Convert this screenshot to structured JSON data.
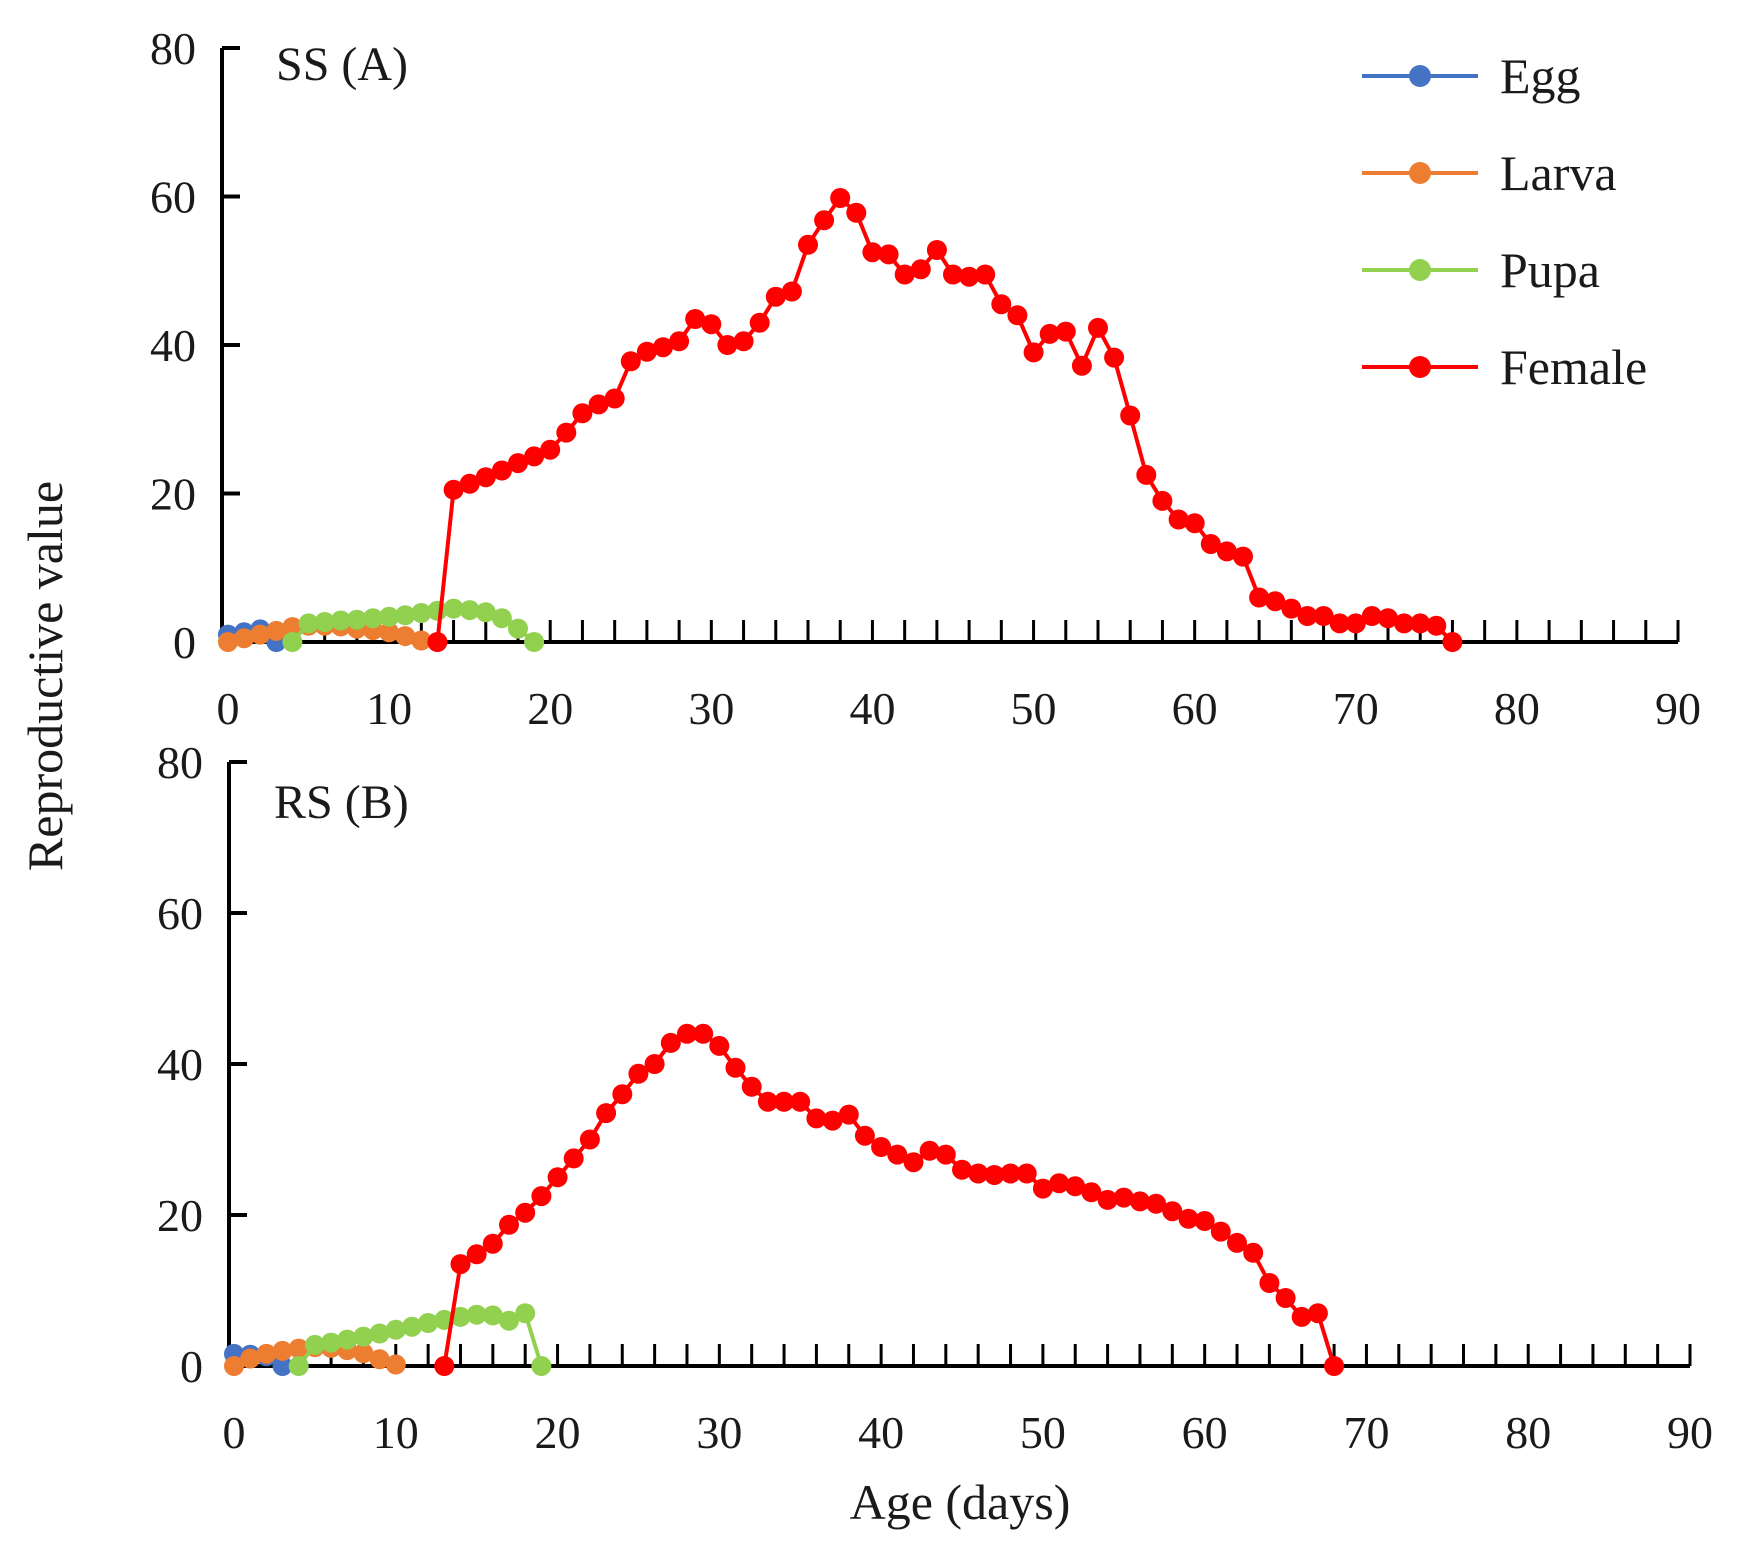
{
  "chart_data": {
    "type": "line",
    "ylabel": "Reproductive value",
    "xlabel": "Age (days)",
    "xlim": [
      0,
      90
    ],
    "ylim": [
      0,
      80
    ],
    "x_ticks": [
      "0",
      "10",
      "20",
      "30",
      "40",
      "50",
      "60",
      "70",
      "80",
      "90"
    ],
    "y_ticks": [
      "0",
      "20",
      "40",
      "60",
      "80"
    ],
    "legend": [
      {
        "name": "Egg",
        "color": "#4472c4"
      },
      {
        "name": "Larva",
        "color": "#ed7d31"
      },
      {
        "name": "Pupa",
        "color": "#92d050"
      },
      {
        "name": "Female",
        "color": "#ff0000"
      }
    ],
    "panels": [
      {
        "label": "SS (A)",
        "series": [
          {
            "name": "Egg",
            "x": [
              0,
              1,
              2,
              3
            ],
            "y": [
              1.0,
              1.3,
              1.7,
              0.0
            ]
          },
          {
            "name": "Larva",
            "x": [
              0,
              1,
              2,
              3,
              4,
              5,
              6,
              7,
              8,
              9,
              10,
              11,
              12
            ],
            "y": [
              0.0,
              0.5,
              1.0,
              1.5,
              2.0,
              2.2,
              2.2,
              2.1,
              1.8,
              1.6,
              1.3,
              0.8,
              0.2
            ]
          },
          {
            "name": "Pupa",
            "x": [
              4,
              5,
              6,
              7,
              8,
              9,
              10,
              11,
              12,
              13,
              14,
              15,
              16,
              17,
              18,
              19
            ],
            "y": [
              0.0,
              2.5,
              2.7,
              2.9,
              3.0,
              3.2,
              3.4,
              3.6,
              3.9,
              4.2,
              4.5,
              4.3,
              4.0,
              3.2,
              1.8,
              0.0
            ]
          },
          {
            "name": "Female",
            "x": [
              13,
              14,
              15,
              16,
              17,
              18,
              19,
              20,
              21,
              22,
              23,
              24,
              25,
              26,
              27,
              28,
              29,
              30,
              31,
              32,
              33,
              34,
              35,
              36,
              37,
              38,
              39,
              40,
              41,
              42,
              43,
              44,
              45,
              46,
              47,
              48,
              49,
              50,
              51,
              52,
              53,
              54,
              55,
              56,
              57,
              58,
              59,
              60,
              61,
              62,
              63,
              64,
              65,
              66,
              67,
              68,
              69,
              70,
              71,
              72,
              73,
              74,
              75,
              76
            ],
            "y": [
              0.0,
              20.5,
              21.3,
              22.2,
              23.1,
              24.1,
              25.0,
              25.9,
              28.2,
              30.8,
              32.0,
              32.8,
              37.8,
              39.1,
              39.7,
              40.5,
              43.5,
              42.8,
              40.0,
              40.5,
              43.0,
              46.5,
              47.2,
              53.5,
              56.8,
              59.8,
              57.8,
              52.5,
              52.2,
              49.5,
              50.2,
              52.8,
              49.5,
              49.2,
              49.5,
              45.5,
              44.0,
              39.0,
              41.5,
              41.8,
              37.2,
              42.3,
              38.3,
              30.5,
              22.5,
              19.0,
              16.5,
              16.0,
              13.2,
              12.2,
              11.5,
              6.0,
              5.5,
              4.5,
              3.5,
              3.5,
              2.5,
              2.5,
              3.5,
              3.2,
              2.5,
              2.5,
              2.2,
              0.0
            ]
          }
        ]
      },
      {
        "label": "RS (B)",
        "series": [
          {
            "name": "Egg",
            "x": [
              0,
              1,
              2,
              3
            ],
            "y": [
              1.6,
              1.5,
              1.3,
              0.0
            ]
          },
          {
            "name": "Larva",
            "x": [
              0,
              1,
              2,
              3,
              4,
              5,
              6,
              7,
              8,
              9,
              10
            ],
            "y": [
              0.0,
              1.0,
              1.6,
              2.0,
              2.3,
              2.5,
              2.4,
              2.1,
              1.7,
              0.9,
              0.2
            ]
          },
          {
            "name": "Pupa",
            "x": [
              4,
              5,
              6,
              7,
              8,
              9,
              10,
              11,
              12,
              13,
              14,
              15,
              16,
              17,
              18,
              19
            ],
            "y": [
              0.0,
              2.8,
              3.1,
              3.5,
              3.9,
              4.3,
              4.8,
              5.2,
              5.7,
              6.1,
              6.5,
              6.8,
              6.7,
              6.0,
              7.0,
              0.0
            ]
          },
          {
            "name": "Female",
            "x": [
              13,
              14,
              15,
              16,
              17,
              18,
              19,
              20,
              21,
              22,
              23,
              24,
              25,
              26,
              27,
              28,
              29,
              30,
              31,
              32,
              33,
              34,
              35,
              36,
              37,
              38,
              39,
              40,
              41,
              42,
              43,
              44,
              45,
              46,
              47,
              48,
              49,
              50,
              51,
              52,
              53,
              54,
              55,
              56,
              57,
              58,
              59,
              60,
              61,
              62,
              63,
              64,
              65,
              66,
              67,
              68
            ],
            "y": [
              0.0,
              13.5,
              14.8,
              16.2,
              18.7,
              20.3,
              22.5,
              25.0,
              27.5,
              30.0,
              33.5,
              36.0,
              38.7,
              40.0,
              42.8,
              44.0,
              44.0,
              42.4,
              39.5,
              37.0,
              35.0,
              35.0,
              35.0,
              32.8,
              32.5,
              33.3,
              30.5,
              29.0,
              28.0,
              27.0,
              28.5,
              28.0,
              26.0,
              25.5,
              25.3,
              25.5,
              25.5,
              23.5,
              24.2,
              23.8,
              23.0,
              22.0,
              22.3,
              21.8,
              21.5,
              20.5,
              19.5,
              19.2,
              17.8,
              16.3,
              15.0,
              11.0,
              9.0,
              6.5,
              7.0,
              0.0
            ]
          }
        ]
      }
    ]
  }
}
